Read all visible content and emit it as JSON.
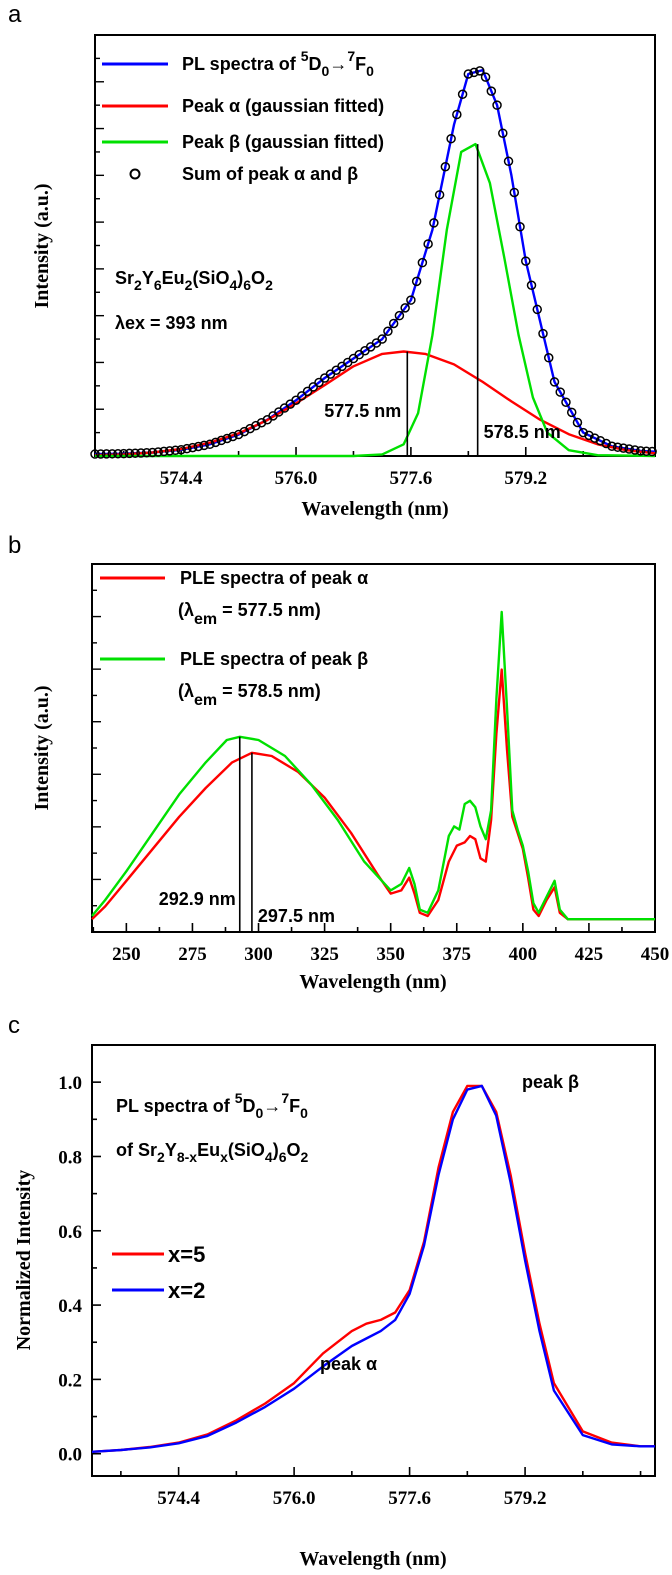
{
  "chart_data": [
    {
      "panel": "a",
      "type": "line",
      "xlabel": "Wavelength (nm)",
      "ylabel": "Intensity (a.u.)",
      "xlim": [
        573.2,
        581.0
      ],
      "ylim": [
        0,
        1.08
      ],
      "xticks": [
        574.4,
        576.0,
        577.6,
        579.2
      ],
      "xtick_labels": [
        "574.4",
        "576.0",
        "577.6",
        "579.2"
      ],
      "legend_position": "top-left",
      "series": [
        {
          "key": "pl",
          "name": "PL spectra of ⁵D₀→⁷F₀",
          "color": "#0000ff",
          "style": "line",
          "x": [
            573.2,
            573.6,
            574.0,
            574.4,
            574.8,
            575.2,
            575.6,
            576.0,
            576.4,
            576.8,
            577.2,
            577.6,
            577.9,
            578.2,
            578.4,
            578.6,
            578.8,
            579.0,
            579.2,
            579.6,
            580.0,
            580.4,
            580.8,
            581.0
          ],
          "y": [
            0.005,
            0.006,
            0.009,
            0.016,
            0.03,
            0.055,
            0.093,
            0.143,
            0.2,
            0.25,
            0.3,
            0.4,
            0.58,
            0.85,
            0.98,
            0.99,
            0.9,
            0.72,
            0.5,
            0.19,
            0.06,
            0.025,
            0.013,
            0.011
          ]
        },
        {
          "key": "alpha",
          "name": "Peak α (gaussian fitted)",
          "color": "#ff0000",
          "style": "line",
          "x": [
            573.2,
            573.6,
            574.0,
            574.4,
            574.8,
            575.2,
            575.6,
            576.0,
            576.4,
            576.8,
            577.2,
            577.5,
            577.8,
            578.2,
            578.6,
            579.0,
            579.4,
            579.8,
            580.2,
            580.6,
            581.0
          ],
          "y": [
            0.002,
            0.004,
            0.009,
            0.018,
            0.034,
            0.058,
            0.092,
            0.135,
            0.182,
            0.23,
            0.262,
            0.268,
            0.262,
            0.235,
            0.19,
            0.14,
            0.093,
            0.056,
            0.03,
            0.015,
            0.007
          ]
        },
        {
          "key": "beta",
          "name": "Peak β (gaussian fitted)",
          "color": "#00e000",
          "style": "line",
          "x": [
            573.2,
            576.8,
            577.2,
            577.5,
            577.7,
            577.9,
            578.1,
            578.3,
            578.5,
            578.7,
            578.9,
            579.1,
            579.3,
            579.5,
            579.8,
            580.2,
            581.0
          ],
          "y": [
            0.0,
            0.0,
            0.004,
            0.03,
            0.11,
            0.31,
            0.58,
            0.78,
            0.8,
            0.7,
            0.51,
            0.31,
            0.15,
            0.06,
            0.015,
            0.002,
            0.0
          ]
        },
        {
          "key": "sum",
          "name": "Sum of peak α and β",
          "color": "#000000",
          "style": "open-circle",
          "x": [
            573.2,
            573.6,
            574.0,
            574.4,
            574.8,
            575.2,
            575.6,
            576.0,
            576.4,
            576.8,
            577.2,
            577.6,
            577.9,
            578.2,
            578.4,
            578.6,
            578.8,
            579.0,
            579.2,
            579.6,
            580.0,
            580.4,
            580.8,
            581.0
          ],
          "y": [
            0.005,
            0.006,
            0.009,
            0.016,
            0.03,
            0.055,
            0.093,
            0.143,
            0.2,
            0.25,
            0.3,
            0.4,
            0.58,
            0.85,
            0.98,
            0.99,
            0.9,
            0.72,
            0.5,
            0.19,
            0.06,
            0.025,
            0.013,
            0.011
          ]
        }
      ],
      "annotations": [
        {
          "key": "ann_alpha",
          "text": "577.5 nm",
          "x": 577.55
        },
        {
          "key": "ann_beta",
          "text": "578.5 nm",
          "x": 578.53
        }
      ],
      "sample_text": "Sr₂Y₆Eu₂(SiO₄)₆O₂",
      "excitation_text": "λex = 393 nm"
    },
    {
      "panel": "b",
      "type": "line",
      "xlabel": "Wavelength (nm)",
      "ylabel": "Intensity (a.u.)",
      "xlim": [
        237,
        450
      ],
      "ylim": [
        0,
        1.15
      ],
      "xticks": [
        250,
        275,
        300,
        325,
        350,
        375,
        400,
        425,
        450
      ],
      "xtick_labels": [
        "250",
        "275",
        "300",
        "325",
        "350",
        "375",
        "400",
        "425",
        "450"
      ],
      "legend_position": "top-left",
      "series": [
        {
          "key": "ple_alpha",
          "name": "PLE spectra of peak α",
          "name2": "(λem = 577.5 nm)",
          "color": "#ff0000",
          "x": [
            237,
            242,
            250,
            260,
            270,
            280,
            290,
            297.5,
            305,
            315,
            325,
            335,
            345,
            350,
            354,
            357,
            359,
            361,
            364,
            368,
            372,
            375,
            378,
            380,
            382,
            384,
            386,
            388,
            390,
            392,
            394,
            396,
            398,
            400,
            402,
            404,
            406,
            409,
            412,
            414,
            417,
            420,
            425,
            450
          ],
          "y": [
            0.04,
            0.08,
            0.16,
            0.26,
            0.36,
            0.45,
            0.53,
            0.56,
            0.55,
            0.5,
            0.42,
            0.31,
            0.18,
            0.12,
            0.13,
            0.17,
            0.12,
            0.06,
            0.05,
            0.1,
            0.22,
            0.27,
            0.28,
            0.3,
            0.29,
            0.23,
            0.22,
            0.35,
            0.62,
            0.82,
            0.57,
            0.36,
            0.31,
            0.26,
            0.17,
            0.07,
            0.05,
            0.1,
            0.14,
            0.06,
            0.04,
            0.04,
            0.04,
            0.04
          ]
        },
        {
          "key": "ple_beta",
          "name": "PLE spectra of peak β",
          "name2": "(λem = 578.5 nm)",
          "color": "#00e000",
          "x": [
            237,
            242,
            250,
            260,
            270,
            280,
            288,
            292.9,
            300,
            310,
            320,
            330,
            340,
            350,
            354,
            357,
            359,
            361,
            364,
            368,
            372,
            374,
            376,
            378,
            380,
            382,
            384,
            386,
            388,
            390,
            392,
            394,
            396,
            398,
            400,
            402,
            404,
            406,
            409,
            412,
            414,
            417,
            420,
            425,
            450
          ],
          "y": [
            0.05,
            0.1,
            0.19,
            0.31,
            0.43,
            0.53,
            0.6,
            0.61,
            0.6,
            0.55,
            0.46,
            0.35,
            0.22,
            0.13,
            0.15,
            0.2,
            0.15,
            0.07,
            0.06,
            0.13,
            0.3,
            0.33,
            0.32,
            0.4,
            0.41,
            0.39,
            0.33,
            0.29,
            0.38,
            0.73,
            1.0,
            0.7,
            0.38,
            0.32,
            0.27,
            0.19,
            0.09,
            0.06,
            0.11,
            0.16,
            0.07,
            0.04,
            0.04,
            0.04,
            0.04
          ]
        }
      ],
      "annotations": [
        {
          "key": "ann_2929",
          "text": "292.9 nm",
          "x": 292.9
        },
        {
          "key": "ann_2975",
          "text": "297.5 nm",
          "x": 297.5
        }
      ]
    },
    {
      "panel": "c",
      "type": "line",
      "xlabel": "Wavelength (nm)",
      "ylabel": "Normalized Intensity",
      "xlim": [
        573.2,
        581.0
      ],
      "ylim": [
        -0.06,
        1.1
      ],
      "xticks": [
        574.4,
        576.0,
        577.6,
        579.2
      ],
      "xtick_labels": [
        "574.4",
        "576.0",
        "577.6",
        "579.2"
      ],
      "yticks": [
        0.0,
        0.2,
        0.4,
        0.6,
        0.8,
        1.0
      ],
      "ytick_labels": [
        "0.0",
        "0.2",
        "0.4",
        "0.6",
        "0.8",
        "1.0"
      ],
      "legend_position": "center-left",
      "title_line1": "PL spectra of ⁵D₀→⁷F₀",
      "title_line2": "of Sr₂Y₈₋ₓEuₓ(SiO₄)₆O₂",
      "series": [
        {
          "key": "x5",
          "name": "x=5",
          "color": "#ff0000",
          "x": [
            573.2,
            573.6,
            574.0,
            574.4,
            574.8,
            575.2,
            575.6,
            576.0,
            576.4,
            576.8,
            577.0,
            577.2,
            577.4,
            577.6,
            577.8,
            578.0,
            578.2,
            578.4,
            578.6,
            578.8,
            579.0,
            579.2,
            579.4,
            579.6,
            580.0,
            580.4,
            580.8,
            581.0
          ],
          "y": [
            0.005,
            0.01,
            0.018,
            0.03,
            0.052,
            0.09,
            0.135,
            0.19,
            0.27,
            0.33,
            0.35,
            0.36,
            0.38,
            0.44,
            0.57,
            0.77,
            0.92,
            0.99,
            0.99,
            0.92,
            0.75,
            0.54,
            0.35,
            0.19,
            0.06,
            0.03,
            0.02,
            0.02
          ]
        },
        {
          "key": "x2",
          "name": "x=2",
          "color": "#0000ff",
          "x": [
            573.2,
            573.6,
            574.0,
            574.4,
            574.8,
            575.2,
            575.6,
            576.0,
            576.4,
            576.8,
            577.0,
            577.2,
            577.4,
            577.6,
            577.8,
            578.0,
            578.2,
            578.4,
            578.6,
            578.8,
            579.0,
            579.2,
            579.4,
            579.6,
            580.0,
            580.4,
            580.8,
            581.0
          ],
          "y": [
            0.005,
            0.01,
            0.017,
            0.028,
            0.048,
            0.084,
            0.126,
            0.175,
            0.235,
            0.29,
            0.31,
            0.33,
            0.36,
            0.43,
            0.56,
            0.75,
            0.9,
            0.98,
            0.99,
            0.91,
            0.73,
            0.52,
            0.33,
            0.17,
            0.05,
            0.025,
            0.02,
            0.02
          ]
        }
      ],
      "annotations": [
        {
          "key": "ann_peak_beta",
          "text": "peak β",
          "x": 578.9,
          "y": 1.0
        },
        {
          "key": "ann_peak_alpha",
          "text": "peak α",
          "x": 577.2,
          "y": 0.2
        }
      ]
    }
  ],
  "panel_letters": {
    "a": "a",
    "b": "b",
    "c": "c"
  }
}
